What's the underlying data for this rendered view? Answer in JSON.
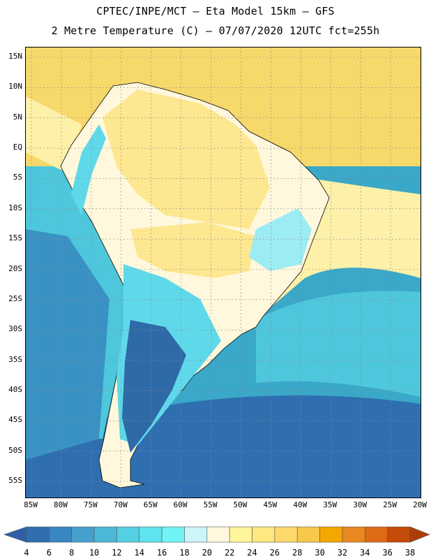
{
  "title": {
    "line1": "CPTEC/INPE/MCT –  Eta Model 15km – GFS",
    "line2": "2 Metre Temperature (C) – 07/07/2020 12UTC fct=255h"
  },
  "axes": {
    "lat_labels": [
      "15N",
      "10N",
      "5N",
      "EQ",
      "5S",
      "10S",
      "15S",
      "20S",
      "25S",
      "30S",
      "35S",
      "40S",
      "45S",
      "50S",
      "55S"
    ],
    "lon_labels": [
      "85W",
      "80W",
      "75W",
      "70W",
      "65W",
      "60W",
      "55W",
      "50W",
      "45W",
      "40W",
      "35W",
      "30W",
      "25W",
      "20W"
    ]
  },
  "colorbar": {
    "labels": [
      "4",
      "6",
      "8",
      "10",
      "12",
      "14",
      "16",
      "18",
      "20",
      "22",
      "24",
      "26",
      "28",
      "30",
      "32",
      "34",
      "36",
      "38"
    ],
    "colors": [
      "#2f6fb0",
      "#3a86c0",
      "#45a0cc",
      "#4cb8d8",
      "#55cfe2",
      "#5fe3ec",
      "#6ff3f6",
      "#ccf5f8",
      "#fff8dc",
      "#fff59a",
      "#ffe880",
      "#fdd86a",
      "#f6c84c",
      "#f3a800",
      "#e8881e",
      "#dd6a14",
      "#c54a08"
    ],
    "low_color": "#2f60a8",
    "high_color": "#b03c08"
  },
  "map_colors": {
    "ocean_warm": "#f7d86a",
    "ocean_mid": "#fdf0a8",
    "ocean_cool": "#4ec7dc",
    "ocean_cold": "#2f6fb0",
    "land_warm": "#fde790",
    "land_mild": "#fff8dc",
    "land_cool": "#5fd9ea",
    "land_cold": "#2f6aa8",
    "grid": "#888888",
    "borders": "#000000"
  }
}
